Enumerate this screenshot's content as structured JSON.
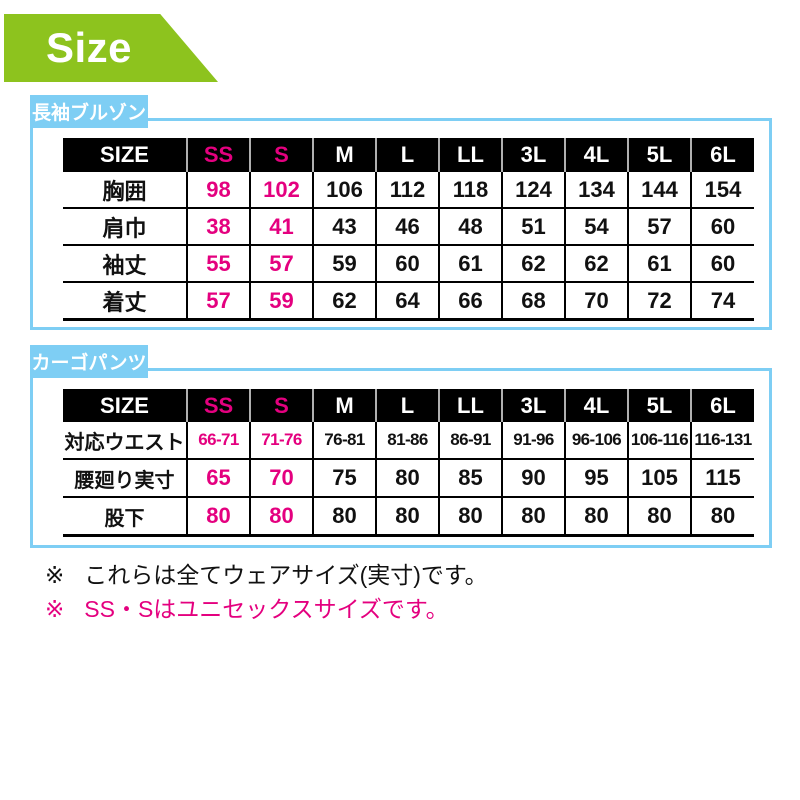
{
  "banner": {
    "label": "Size"
  },
  "colors": {
    "green": "#8dc31e",
    "blue": "#7ecef4",
    "pink": "#e4007f",
    "ink": "#111111"
  },
  "tables": [
    {
      "label": "長袖ブルゾン",
      "header": [
        "SIZE",
        "SS",
        "S",
        "M",
        "L",
        "LL",
        "3L",
        "4L",
        "5L",
        "6L"
      ],
      "rows": [
        {
          "label": "胸囲",
          "values": [
            "98",
            "102",
            "106",
            "112",
            "118",
            "124",
            "134",
            "144",
            "154"
          ]
        },
        {
          "label": "肩巾",
          "values": [
            "38",
            "41",
            "43",
            "46",
            "48",
            "51",
            "54",
            "57",
            "60"
          ]
        },
        {
          "label": "袖丈",
          "values": [
            "55",
            "57",
            "59",
            "60",
            "61",
            "62",
            "62",
            "61",
            "60"
          ]
        },
        {
          "label": "着丈",
          "values": [
            "57",
            "59",
            "62",
            "64",
            "66",
            "68",
            "70",
            "72",
            "74"
          ]
        }
      ]
    },
    {
      "label": "カーゴパンツ",
      "header": [
        "SIZE",
        "SS",
        "S",
        "M",
        "L",
        "LL",
        "3L",
        "4L",
        "5L",
        "6L"
      ],
      "rows": [
        {
          "label": "対応ウエスト",
          "values": [
            "66-71",
            "71-76",
            "76-81",
            "81-86",
            "86-91",
            "91-96",
            "96-106",
            "106-116",
            "116-131"
          ]
        },
        {
          "label": "腰廻り実寸",
          "values": [
            "65",
            "70",
            "75",
            "80",
            "85",
            "90",
            "95",
            "105",
            "115"
          ]
        },
        {
          "label": "股下",
          "values": [
            "80",
            "80",
            "80",
            "80",
            "80",
            "80",
            "80",
            "80",
            "80"
          ]
        }
      ]
    }
  ],
  "notes": [
    {
      "marker": "※",
      "text": "これらは全てウェアサイズ(実寸)です。"
    },
    {
      "marker": "※",
      "text": "SS・Sはユニセックスサイズです。"
    }
  ],
  "chart_data": [
    {
      "type": "table",
      "title": "長袖ブルゾン",
      "columns": [
        "SIZE",
        "SS",
        "S",
        "M",
        "L",
        "LL",
        "3L",
        "4L",
        "5L",
        "6L"
      ],
      "rows": [
        [
          "胸囲",
          98,
          102,
          106,
          112,
          118,
          124,
          134,
          144,
          154
        ],
        [
          "肩巾",
          38,
          41,
          43,
          46,
          48,
          51,
          54,
          57,
          60
        ],
        [
          "袖丈",
          55,
          57,
          59,
          60,
          61,
          62,
          62,
          61,
          60
        ],
        [
          "着丈",
          57,
          59,
          62,
          64,
          66,
          68,
          70,
          72,
          74
        ]
      ],
      "highlight_columns": [
        "SS",
        "S"
      ],
      "highlight_color": "#e4007f"
    },
    {
      "type": "table",
      "title": "カーゴパンツ",
      "columns": [
        "SIZE",
        "SS",
        "S",
        "M",
        "L",
        "LL",
        "3L",
        "4L",
        "5L",
        "6L"
      ],
      "rows": [
        [
          "対応ウエスト",
          "66-71",
          "71-76",
          "76-81",
          "81-86",
          "86-91",
          "91-96",
          "96-106",
          "106-116",
          "116-131"
        ],
        [
          "腰廻り実寸",
          65,
          70,
          75,
          80,
          85,
          90,
          95,
          105,
          115
        ],
        [
          "股下",
          80,
          80,
          80,
          80,
          80,
          80,
          80,
          80,
          80
        ]
      ],
      "highlight_columns": [
        "SS",
        "S"
      ],
      "highlight_color": "#e4007f"
    }
  ]
}
